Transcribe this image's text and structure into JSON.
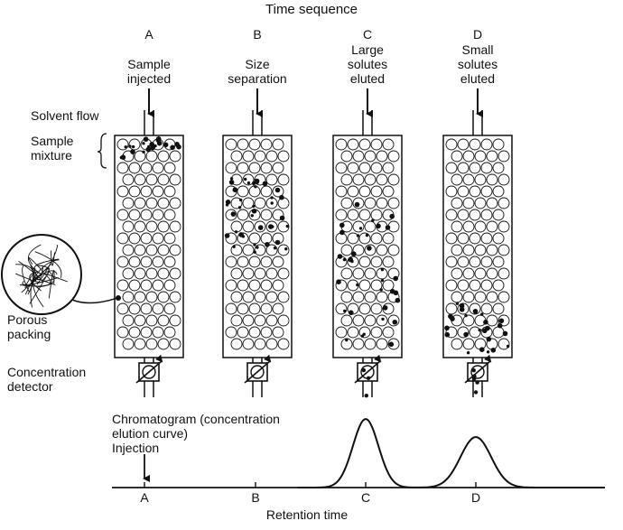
{
  "header": {
    "title": "Time sequence"
  },
  "columns": [
    {
      "letter": "A",
      "caption": [
        "Sample",
        "injected"
      ]
    },
    {
      "letter": "B",
      "caption": [
        "Size",
        "separation"
      ]
    },
    {
      "letter": "C",
      "caption": [
        "Large",
        "solutes",
        "eluted"
      ]
    },
    {
      "letter": "D",
      "caption": [
        "Small",
        "solutes",
        "eluted"
      ]
    }
  ],
  "labels": {
    "solvent_flow": "Solvent flow",
    "sample_mixture": [
      "Sample",
      "mixture"
    ],
    "porous_packing": [
      "Porous",
      "packing"
    ],
    "concentration_detector": [
      "Concentration",
      "detector"
    ]
  },
  "chromatogram": {
    "title": [
      "Chromatogram (concentration",
      "elution curve)"
    ],
    "injection": "Injection",
    "axis_label": "Retention time",
    "ticks": [
      "A",
      "B",
      "C",
      "D"
    ]
  },
  "colors": {
    "ink": "#111111",
    "background": "#ffffff"
  }
}
